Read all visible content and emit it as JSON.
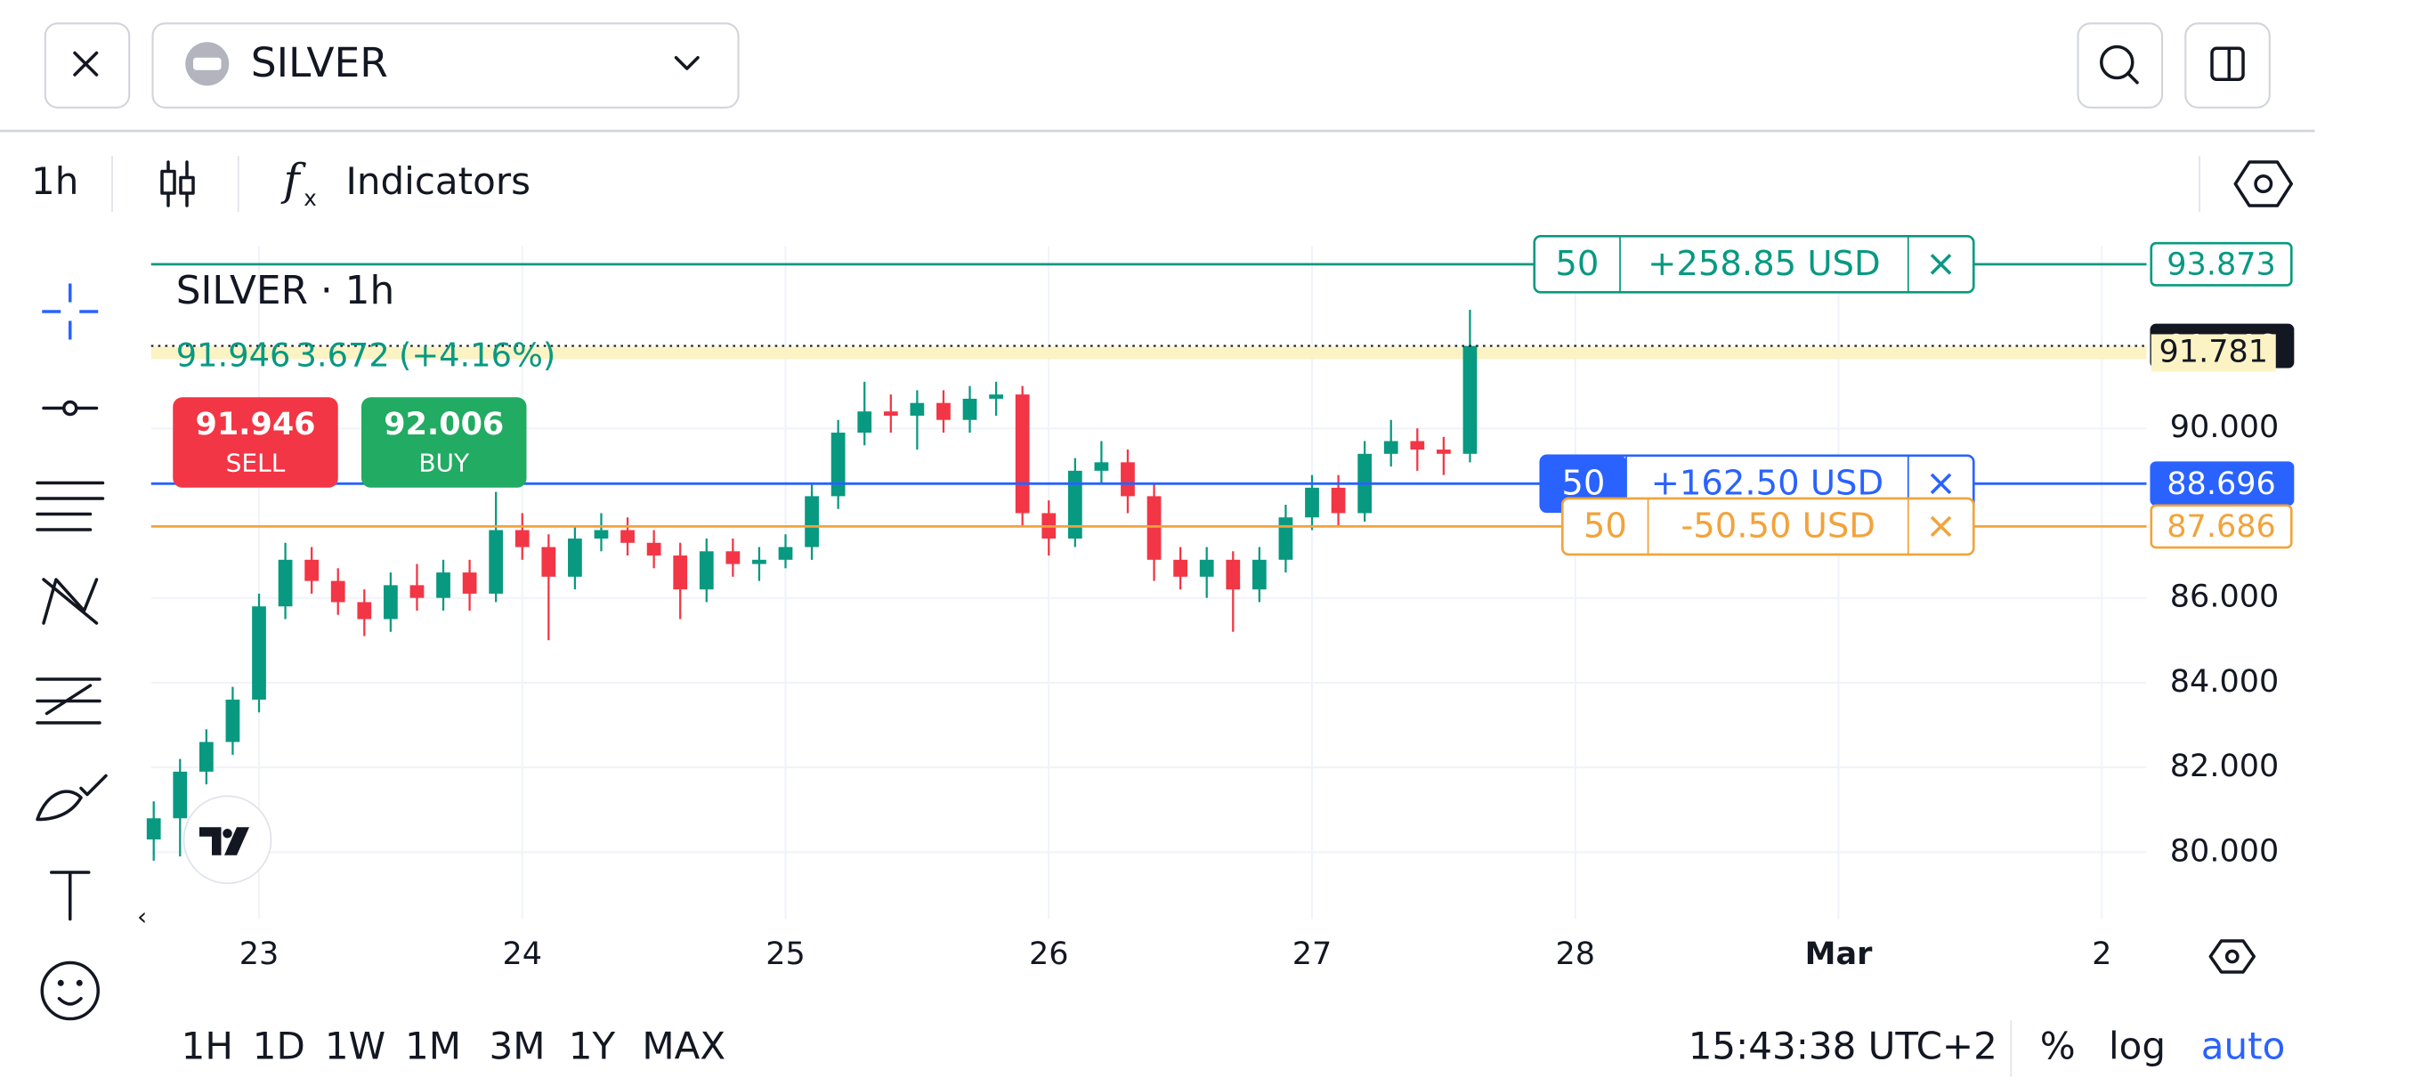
{
  "header": {
    "symbol": "SILVER"
  },
  "toolbar": {
    "interval": "1h",
    "indicators": "Indicators"
  },
  "trade": {
    "sell": {
      "price": 91.946,
      "label": "SELL"
    },
    "buy": {
      "price": 92.006,
      "label": "BUY"
    }
  },
  "bottom_bar": {
    "ranges": [
      "1H",
      "1D",
      "1W",
      "1M",
      "3M",
      "1Y",
      "MAX"
    ],
    "clock": "15:43:38 UTC+2",
    "percent": "%",
    "log": "log",
    "auto": "auto"
  },
  "chart_data": {
    "type": "candlestick",
    "title": "SILVER · 1h",
    "last": 91.946,
    "change": 3.672,
    "change_label": "(+4.16%)",
    "up_color": "#089981",
    "down_color": "#f23645",
    "x": [
      22.6,
      22.7,
      22.8,
      22.9,
      23.0,
      23.1,
      23.2,
      23.3,
      23.4,
      23.5,
      23.6,
      23.7,
      23.8,
      23.9,
      24.0,
      24.1,
      24.2,
      24.3,
      24.4,
      24.5,
      24.6,
      24.7,
      24.8,
      24.9,
      25.0,
      25.1,
      25.2,
      25.3,
      25.4,
      25.5,
      25.6,
      25.7,
      25.8,
      25.9,
      26.0,
      26.1,
      26.2,
      26.3,
      26.4,
      26.5,
      26.6,
      26.7,
      26.8,
      26.9,
      27.0,
      27.1,
      27.2,
      27.3,
      27.4,
      27.5,
      27.6
    ],
    "open": [
      80.3,
      80.8,
      81.9,
      82.6,
      83.6,
      85.8,
      86.9,
      86.4,
      85.9,
      85.5,
      86.3,
      86.0,
      86.6,
      86.1,
      87.6,
      87.2,
      86.5,
      87.4,
      87.6,
      87.3,
      87.0,
      86.2,
      87.1,
      86.8,
      86.9,
      87.2,
      88.4,
      89.9,
      90.4,
      90.3,
      90.6,
      90.2,
      90.7,
      90.8,
      88.0,
      87.4,
      89.0,
      89.2,
      88.4,
      86.9,
      86.5,
      86.9,
      86.2,
      86.9,
      87.9,
      88.6,
      88.0,
      89.4,
      89.7,
      89.5,
      89.4
    ],
    "high": [
      81.2,
      82.2,
      82.9,
      83.9,
      86.1,
      87.3,
      87.2,
      86.7,
      86.2,
      86.6,
      86.8,
      86.9,
      86.9,
      88.5,
      88.0,
      87.5,
      87.7,
      88.0,
      87.9,
      87.6,
      87.3,
      87.4,
      87.4,
      87.2,
      87.5,
      88.7,
      90.2,
      91.1,
      90.8,
      90.9,
      90.9,
      91.0,
      91.1,
      91.0,
      88.3,
      89.3,
      89.7,
      89.5,
      88.7,
      87.2,
      87.2,
      87.1,
      87.2,
      88.2,
      88.9,
      88.9,
      89.7,
      90.2,
      90.0,
      89.8,
      92.8
    ],
    "low": [
      79.8,
      79.9,
      81.6,
      82.3,
      83.3,
      85.5,
      86.1,
      85.6,
      85.1,
      85.2,
      85.7,
      85.7,
      85.7,
      85.9,
      86.9,
      85.0,
      86.2,
      87.1,
      87.0,
      86.7,
      85.5,
      85.9,
      86.5,
      86.4,
      86.7,
      86.9,
      88.1,
      89.6,
      89.9,
      89.5,
      89.9,
      89.9,
      90.3,
      87.7,
      87.0,
      87.2,
      88.7,
      88.0,
      86.4,
      86.2,
      86.0,
      85.2,
      85.9,
      86.6,
      87.6,
      87.7,
      87.8,
      89.1,
      89.0,
      88.9,
      89.2
    ],
    "close": [
      80.8,
      81.9,
      82.6,
      83.6,
      85.8,
      86.9,
      86.4,
      85.9,
      85.5,
      86.3,
      86.0,
      86.6,
      86.1,
      87.6,
      87.2,
      86.5,
      87.4,
      87.6,
      87.3,
      87.0,
      86.2,
      87.1,
      86.8,
      86.9,
      87.2,
      88.4,
      89.9,
      90.4,
      90.3,
      90.6,
      90.2,
      90.7,
      90.8,
      88.0,
      87.4,
      89.0,
      89.2,
      88.4,
      86.9,
      86.5,
      86.9,
      86.2,
      86.9,
      87.9,
      88.6,
      88.0,
      89.4,
      89.7,
      89.5,
      89.4,
      91.946
    ],
    "xlim": [
      22.59,
      30.17
    ],
    "xticks": [
      23,
      24,
      25,
      26,
      27,
      28,
      {
        "value": 29,
        "label": "Mar"
      },
      {
        "value": 30,
        "label": "2"
      }
    ],
    "ylim": [
      78.42,
      94.3
    ],
    "yticks": [
      {
        "value": 80,
        "label": "80.000"
      },
      {
        "value": 82,
        "label": "82.000"
      },
      {
        "value": 84,
        "label": "84.000"
      },
      {
        "value": 86,
        "label": "86.000"
      },
      {
        "value": 90,
        "label": "90.000"
      }
    ],
    "grid": true,
    "levels": [
      {
        "value": 93.873,
        "color": "#089981",
        "style": "solid",
        "order": {
          "qty": 50,
          "pnl": "+258.85 USD"
        }
      },
      {
        "value": 91.946,
        "color": "#131722",
        "style": "dotted"
      },
      {
        "value": 91.781,
        "color": "#fbf3c4",
        "style": "highlight"
      },
      {
        "value": 88.696,
        "color": "#2962ff",
        "style": "solid",
        "order": {
          "qty": 50,
          "pnl": "+162.50 USD"
        }
      },
      {
        "value": 87.686,
        "color": "#f2a33a",
        "style": "solid",
        "order": {
          "qty": 50,
          "pnl": "-50.50 USD"
        }
      }
    ]
  }
}
